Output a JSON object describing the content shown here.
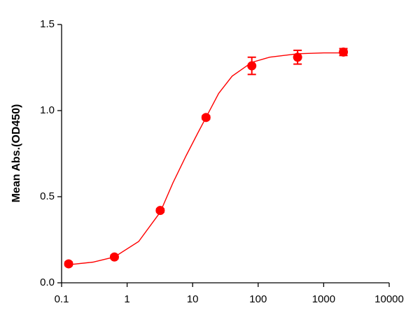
{
  "chart_data": {
    "type": "scatter",
    "y_label": "Mean Abs.(OD450)",
    "x": [
      0.128,
      0.64,
      3.2,
      16,
      80,
      400,
      2000
    ],
    "values": [
      0.11,
      0.15,
      0.42,
      0.96,
      1.26,
      1.31,
      1.34
    ],
    "errors": [
      0.01,
      0.01,
      0.01,
      0.01,
      0.05,
      0.04,
      0.02
    ],
    "color": "#ff0000",
    "curve": {
      "x": [
        0.128,
        0.3,
        0.64,
        1.5,
        3.2,
        5,
        8,
        12,
        16,
        25,
        40,
        80,
        150,
        400,
        1000,
        2000
      ],
      "values": [
        0.105,
        0.12,
        0.15,
        0.24,
        0.41,
        0.58,
        0.74,
        0.87,
        0.96,
        1.1,
        1.2,
        1.28,
        1.31,
        1.33,
        1.335,
        1.335
      ]
    },
    "xscale": "log",
    "xlim": [
      0.1,
      10000
    ],
    "xticks": [
      0.1,
      1,
      10,
      100,
      1000,
      10000
    ],
    "ylim": [
      0,
      1.5
    ],
    "yticks": [
      {
        "value": 0,
        "label": "0.0"
      },
      {
        "value": 0.5,
        "label": "0.5"
      },
      {
        "value": 1,
        "label": "1.0"
      },
      {
        "value": 1.5,
        "label": "1.5"
      }
    ]
  }
}
